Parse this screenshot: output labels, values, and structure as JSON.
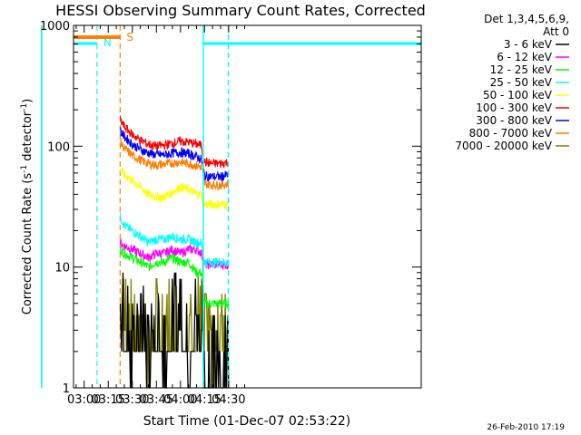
{
  "chart_data": {
    "type": "line",
    "title": "HESSI Observing Summary Count Rates, Corrected",
    "xlabel": "Start Time (01-Dec-07 02:53:22)",
    "ylabel": "Corrected Count Rate (s",
    "ylabel_sup1": "-1",
    "ylabel_mid": " detector",
    "ylabel_sup2": "-1",
    "ylabel_end": ")",
    "yscale": "log",
    "ylim": [
      1,
      1000
    ],
    "xlim_minutes": [
      53.37,
      270.0
    ],
    "x_ticks": [
      {
        "label": "03:00",
        "minutes": 60
      },
      {
        "label": "03:15",
        "minutes": 75
      },
      {
        "label": "03:30",
        "minutes": 90
      },
      {
        "label": "03:45",
        "minutes": 105
      },
      {
        "label": "04:00",
        "minutes": 120
      },
      {
        "label": "04:15",
        "minutes": 135
      },
      {
        "label": "04:30",
        "minutes": 150
      }
    ],
    "y_ticks": [
      {
        "label": "1",
        "value": 1
      },
      {
        "label": "10",
        "value": 10
      },
      {
        "label": "100",
        "value": 100
      },
      {
        "label": "1000",
        "value": 1000
      }
    ],
    "legend": {
      "header1": "Det 1,3,4,5,6,9,",
      "header2": "Att 0",
      "placement": "right"
    },
    "series": [
      {
        "name": "3 - 6 keV",
        "color": "#000000",
        "points": [
          [
            82.5,
            4
          ],
          [
            85,
            3
          ],
          [
            90,
            2
          ],
          [
            95,
            3
          ],
          [
            100,
            2
          ],
          [
            105,
            3
          ],
          [
            110,
            2
          ],
          [
            115,
            3
          ],
          [
            120,
            4
          ],
          [
            125,
            2
          ],
          [
            130,
            3
          ],
          [
            134,
            4
          ],
          [
            135,
            2
          ],
          [
            140,
            2
          ],
          [
            145,
            1
          ],
          [
            148,
            2
          ],
          [
            150,
            2
          ]
        ]
      },
      {
        "name": "6 - 12 keV",
        "color": "#ff00ff",
        "points": [
          [
            82.5,
            16
          ],
          [
            85,
            15
          ],
          [
            90,
            14
          ],
          [
            95,
            13
          ],
          [
            100,
            12
          ],
          [
            105,
            13
          ],
          [
            110,
            13
          ],
          [
            115,
            14
          ],
          [
            120,
            13
          ],
          [
            125,
            14
          ],
          [
            130,
            14
          ],
          [
            133,
            13
          ],
          [
            134.5,
            11
          ],
          [
            135,
            10.5
          ],
          [
            140,
            10.5
          ],
          [
            145,
            10.5
          ],
          [
            150,
            10.5
          ]
        ]
      },
      {
        "name": "12 - 25 keV",
        "color": "#00ff00",
        "points": [
          [
            82.5,
            14
          ],
          [
            85,
            13
          ],
          [
            90,
            12
          ],
          [
            95,
            11
          ],
          [
            100,
            10
          ],
          [
            105,
            11
          ],
          [
            110,
            11
          ],
          [
            115,
            12
          ],
          [
            120,
            11
          ],
          [
            125,
            11
          ],
          [
            130,
            9
          ],
          [
            133,
            9
          ],
          [
            134.5,
            6
          ],
          [
            135,
            5
          ],
          [
            140,
            5
          ],
          [
            145,
            5
          ],
          [
            150,
            5
          ]
        ]
      },
      {
        "name": "25 - 50 keV",
        "color": "#00ffff",
        "points": [
          [
            82.5,
            26
          ],
          [
            85,
            22
          ],
          [
            90,
            20
          ],
          [
            95,
            18
          ],
          [
            100,
            16
          ],
          [
            105,
            17
          ],
          [
            110,
            17
          ],
          [
            115,
            18
          ],
          [
            120,
            17
          ],
          [
            125,
            17
          ],
          [
            130,
            16
          ],
          [
            133,
            16
          ],
          [
            134.5,
            12
          ],
          [
            135,
            11
          ],
          [
            140,
            11
          ],
          [
            145,
            11
          ],
          [
            150,
            11
          ]
        ]
      },
      {
        "name": "50 - 100 keV",
        "color": "#ffff00",
        "points": [
          [
            82.5,
            65
          ],
          [
            85,
            58
          ],
          [
            90,
            52
          ],
          [
            95,
            46
          ],
          [
            100,
            40
          ],
          [
            105,
            38
          ],
          [
            110,
            38
          ],
          [
            115,
            42
          ],
          [
            120,
            46
          ],
          [
            125,
            44
          ],
          [
            130,
            40
          ],
          [
            133,
            40
          ],
          [
            134.5,
            35
          ],
          [
            135,
            33
          ],
          [
            140,
            33
          ],
          [
            145,
            33
          ],
          [
            150,
            33
          ]
        ]
      },
      {
        "name": "100 - 300 keV",
        "color": "#ff0000",
        "points": [
          [
            82.5,
            165
          ],
          [
            85,
            145
          ],
          [
            90,
            125
          ],
          [
            95,
            112
          ],
          [
            100,
            104
          ],
          [
            105,
            100
          ],
          [
            110,
            102
          ],
          [
            115,
            106
          ],
          [
            120,
            110
          ],
          [
            125,
            108
          ],
          [
            130,
            104
          ],
          [
            133,
            102
          ],
          [
            134.5,
            80
          ],
          [
            135,
            74
          ],
          [
            140,
            72
          ],
          [
            145,
            72
          ],
          [
            150,
            74
          ]
        ]
      },
      {
        "name": "300 - 800 keV",
        "color": "#0000ff",
        "points": [
          [
            82.5,
            135
          ],
          [
            85,
            120
          ],
          [
            90,
            104
          ],
          [
            95,
            94
          ],
          [
            100,
            88
          ],
          [
            105,
            85
          ],
          [
            110,
            85
          ],
          [
            115,
            88
          ],
          [
            120,
            89
          ],
          [
            125,
            87
          ],
          [
            130,
            82
          ],
          [
            133,
            78
          ],
          [
            134.5,
            62
          ],
          [
            135,
            57
          ],
          [
            140,
            56
          ],
          [
            145,
            56
          ],
          [
            150,
            58
          ]
        ]
      },
      {
        "name": "800 - 7000 keV",
        "color": "#ff8000",
        "points": [
          [
            82.5,
            108
          ],
          [
            85,
            96
          ],
          [
            90,
            84
          ],
          [
            95,
            77
          ],
          [
            100,
            72
          ],
          [
            105,
            70
          ],
          [
            110,
            71
          ],
          [
            115,
            73
          ],
          [
            120,
            74
          ],
          [
            125,
            72
          ],
          [
            130,
            69
          ],
          [
            133,
            67
          ],
          [
            134.5,
            54
          ],
          [
            135,
            49
          ],
          [
            140,
            48
          ],
          [
            145,
            48
          ],
          [
            150,
            49
          ]
        ]
      },
      {
        "name": "7000 - 20000 keV",
        "color": "#808000",
        "points": [
          [
            82.5,
            5
          ],
          [
            85,
            4
          ],
          [
            90,
            3
          ],
          [
            95,
            3
          ],
          [
            100,
            2
          ],
          [
            105,
            3
          ],
          [
            110,
            3
          ],
          [
            115,
            3
          ],
          [
            120,
            4
          ],
          [
            125,
            3
          ],
          [
            130,
            3
          ],
          [
            134,
            4
          ],
          [
            135,
            3
          ],
          [
            140,
            2
          ],
          [
            145,
            3
          ],
          [
            150,
            3
          ]
        ]
      }
    ],
    "markers": [
      {
        "label": "N",
        "color": "#00ffff",
        "minutes": 68.0
      },
      {
        "label": "S",
        "color": "#ff8000",
        "minutes": 82.4
      }
    ],
    "state_lines": [
      {
        "color": "#00ffff",
        "minutes": 134.2
      },
      {
        "color": "#00ffff",
        "minutes": 149.8
      }
    ]
  },
  "footer": {
    "timestamp": "26-Feb-2010 17:19"
  }
}
